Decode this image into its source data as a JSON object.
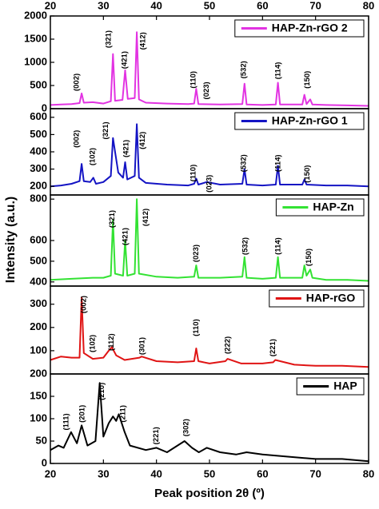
{
  "chart_data": [
    {
      "type": "line",
      "xlim": [
        20,
        80
      ],
      "xticks": [
        20,
        30,
        40,
        50,
        60,
        70,
        80
      ],
      "ylim": [
        0,
        2000
      ],
      "yticks": [
        0,
        500,
        1000,
        1500,
        2000
      ],
      "x": [
        20,
        22,
        24,
        25.5,
        25.9,
        26.3,
        28,
        30,
        31.4,
        31.8,
        32.2,
        33.6,
        34.1,
        34.6,
        35.9,
        36.3,
        36.7,
        38,
        42,
        46,
        47.1,
        47.5,
        47.9,
        52,
        56.2,
        56.6,
        57,
        60,
        62.5,
        62.9,
        63.3,
        67.5,
        67.9,
        68.3,
        69.0,
        69.4,
        72,
        76,
        80
      ],
      "series": [
        {
          "name": "HAP-Zn-rGO 2",
          "color": "#e233e2",
          "values": [
            80,
            90,
            100,
            120,
            330,
            130,
            140,
            110,
            160,
            1180,
            170,
            190,
            830,
            210,
            230,
            1650,
            200,
            130,
            110,
            100,
            110,
            430,
            100,
            90,
            100,
            540,
            90,
            80,
            90,
            560,
            90,
            90,
            300,
            100,
            200,
            90,
            80,
            70,
            60
          ]
        }
      ],
      "annotations": [
        {
          "text": "(002)",
          "x": 25,
          "y": 570
        },
        {
          "text": "(321)",
          "x": 31,
          "y": 1500
        },
        {
          "text": "(421)",
          "x": 34,
          "y": 1050
        },
        {
          "text": "(412)",
          "x": 37.5,
          "y": 1460
        },
        {
          "text": "(110)",
          "x": 47,
          "y": 625
        },
        {
          "text": "(023)",
          "x": 49.5,
          "y": 390
        },
        {
          "text": "(532)",
          "x": 56.5,
          "y": 840
        },
        {
          "text": "(114)",
          "x": 63,
          "y": 820
        },
        {
          "text": "(150)",
          "x": 68.5,
          "y": 625
        }
      ]
    },
    {
      "type": "line",
      "ylim": [
        150,
        650
      ],
      "yticks": [
        200,
        300,
        400,
        500,
        600
      ],
      "x": [
        20,
        22,
        24,
        25.5,
        25.9,
        26.3,
        27.5,
        28.1,
        28.6,
        30,
        31.4,
        31.8,
        32.2,
        32.8,
        33.7,
        34.1,
        34.5,
        35.9,
        36.3,
        36.7,
        38,
        42,
        46,
        47.1,
        47.5,
        47.9,
        49.5,
        52,
        56.2,
        56.6,
        57,
        60,
        62.5,
        62.9,
        63.3,
        67.5,
        67.9,
        68.3,
        72,
        76,
        80
      ],
      "series": [
        {
          "name": "HAP-Zn-rGO 1",
          "color": "#1414c4",
          "values": [
            200,
            205,
            215,
            230,
            330,
            230,
            225,
            250,
            215,
            225,
            260,
            480,
            400,
            280,
            250,
            340,
            240,
            260,
            560,
            250,
            220,
            210,
            205,
            215,
            245,
            210,
            225,
            210,
            215,
            300,
            210,
            205,
            210,
            320,
            210,
            210,
            240,
            210,
            205,
            205,
            200
          ]
        }
      ],
      "annotations": [
        {
          "text": "(002)",
          "x": 25,
          "y": 475
        },
        {
          "text": "(102)",
          "x": 28,
          "y": 372
        },
        {
          "text": "(321)",
          "x": 30.5,
          "y": 523
        },
        {
          "text": "(421)",
          "x": 34.3,
          "y": 419
        },
        {
          "text": "(412)",
          "x": 37.4,
          "y": 466
        },
        {
          "text": "(110)",
          "x": 47,
          "y": 277
        },
        {
          "text": "(023)",
          "x": 50,
          "y": 216
        },
        {
          "text": "(532)",
          "x": 56.5,
          "y": 334
        },
        {
          "text": "(114)",
          "x": 63,
          "y": 334
        },
        {
          "text": "(150)",
          "x": 68.5,
          "y": 272
        }
      ]
    },
    {
      "type": "line",
      "ylim": [
        380,
        820
      ],
      "yticks": [
        400,
        500,
        600,
        800
      ],
      "ylabel": "Intensity (a.u.)",
      "x": [
        20,
        24,
        28,
        30,
        31.4,
        31.8,
        32.2,
        33.7,
        34.1,
        34.5,
        35.9,
        36.3,
        36.7,
        40,
        44,
        47.1,
        47.5,
        47.9,
        52,
        56.2,
        56.6,
        57,
        60,
        62.5,
        62.9,
        63.3,
        67.5,
        67.9,
        68.3,
        69,
        69.4,
        72,
        76,
        80
      ],
      "series": [
        {
          "name": "HAP-Zn",
          "color": "#33e233",
          "values": [
            410,
            415,
            420,
            420,
            430,
            700,
            440,
            430,
            600,
            430,
            440,
            800,
            440,
            425,
            420,
            425,
            480,
            420,
            420,
            425,
            520,
            420,
            415,
            420,
            520,
            420,
            420,
            480,
            430,
            460,
            420,
            410,
            410,
            405
          ]
        }
      ],
      "annotations": [
        {
          "text": "(321)",
          "x": 31.7,
          "y": 704
        },
        {
          "text": "(421)",
          "x": 34.2,
          "y": 619
        },
        {
          "text": "(412)",
          "x": 38,
          "y": 712
        },
        {
          "text": "(023)",
          "x": 47.5,
          "y": 538
        },
        {
          "text": "(532)",
          "x": 56.8,
          "y": 573
        },
        {
          "text": "(114)",
          "x": 63,
          "y": 573
        },
        {
          "text": "(150)",
          "x": 68.8,
          "y": 519
        }
      ]
    },
    {
      "type": "line",
      "ylim": [
        0,
        378
      ],
      "yticks": [
        100,
        200,
        300
      ],
      "x": [
        20,
        22,
        24,
        25.5,
        25.9,
        26.3,
        28,
        30,
        31,
        31.6,
        32.4,
        34,
        36.8,
        37.2,
        40,
        44,
        47.1,
        47.5,
        47.9,
        50,
        53,
        53.4,
        56,
        60,
        62,
        62.4,
        66,
        70,
        75,
        80
      ],
      "series": [
        {
          "name": "HAP-rGO",
          "color": "#e01414",
          "values": [
            60,
            75,
            70,
            70,
            330,
            90,
            65,
            70,
            100,
            115,
            80,
            60,
            70,
            75,
            55,
            50,
            55,
            110,
            55,
            45,
            55,
            65,
            45,
            45,
            50,
            60,
            40,
            35,
            35,
            30
          ]
        }
      ],
      "annotations": [
        {
          "text": "(002)",
          "x": 26.3,
          "y": 299
        },
        {
          "text": "(102)",
          "x": 28,
          "y": 131
        },
        {
          "text": "(112)",
          "x": 31.5,
          "y": 137
        },
        {
          "text": "(301)",
          "x": 37.3,
          "y": 120
        },
        {
          "text": "(110)",
          "x": 47.5,
          "y": 199
        },
        {
          "text": "(222)",
          "x": 53.5,
          "y": 124
        },
        {
          "text": "(221)",
          "x": 62,
          "y": 113
        }
      ]
    },
    {
      "type": "line",
      "xlim": [
        20,
        80
      ],
      "xticks": [
        20,
        30,
        40,
        50,
        60,
        70,
        80
      ],
      "ylim": [
        0,
        200
      ],
      "yticks": [
        0,
        50,
        100,
        150,
        200
      ],
      "xlabel": "Peak position 2θ (º)",
      "x": [
        20,
        21.5,
        22.5,
        23.9,
        25,
        25.9,
        27,
        28.5,
        29.3,
        30,
        31,
        31.8,
        32.4,
        32.9,
        34,
        35,
        38,
        40,
        42,
        45.3,
        46.7,
        48,
        49.5,
        52,
        55,
        57,
        60,
        65,
        70,
        75,
        80
      ],
      "series": [
        {
          "name": "HAP",
          "color": "#000000",
          "values": [
            30,
            40,
            35,
            70,
            45,
            85,
            40,
            50,
            180,
            60,
            90,
            105,
            95,
            110,
            70,
            40,
            30,
            35,
            25,
            50,
            35,
            25,
            35,
            25,
            20,
            25,
            20,
            15,
            10,
            10,
            5
          ]
        }
      ],
      "annotations": [
        {
          "text": "(111)",
          "x": 23,
          "y": 93
        },
        {
          "text": "(201)",
          "x": 26,
          "y": 111
        },
        {
          "text": "(210)",
          "x": 29.7,
          "y": 161
        },
        {
          "text": "(211)",
          "x": 33.7,
          "y": 111
        },
        {
          "text": "(221)",
          "x": 40,
          "y": 62
        },
        {
          "text": "(302)",
          "x": 45.6,
          "y": 80
        }
      ]
    }
  ]
}
